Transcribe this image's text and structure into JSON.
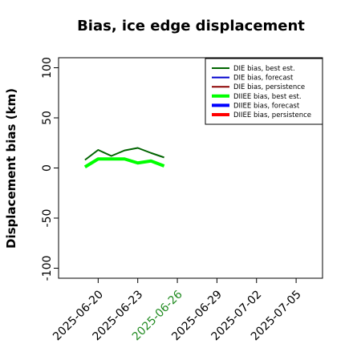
{
  "chart_data": {
    "type": "line",
    "title": "Bias, ice edge displacement",
    "ylabel": "Displacement bias (km)",
    "x": [
      "2025-06-19",
      "2025-06-20",
      "2025-06-21",
      "2025-06-22",
      "2025-06-23",
      "2025-06-24",
      "2025-06-25"
    ],
    "series": [
      {
        "name": "DIE bias, best est.",
        "color": "#006400",
        "width": 2,
        "values": [
          8,
          18,
          12,
          17.5,
          20,
          15,
          10.5
        ]
      },
      {
        "name": "DIE bias, forecast",
        "color": "#0000cd",
        "width": 2,
        "values": [
          null,
          null,
          null,
          null,
          null,
          null,
          null
        ]
      },
      {
        "name": "DIE bias, persistence",
        "color": "#8b0000",
        "width": 2,
        "values": [
          null,
          null,
          null,
          null,
          null,
          null,
          null
        ]
      },
      {
        "name": "DIIEE bias, best est.",
        "color": "#00ff00",
        "width": 4,
        "values": [
          1,
          9,
          9,
          9,
          5,
          7,
          2
        ]
      },
      {
        "name": "DIIEE bias, forecast",
        "color": "#0000ff",
        "width": 4,
        "values": [
          null,
          null,
          null,
          null,
          null,
          null,
          null
        ]
      },
      {
        "name": "DIIEE bias, persistence",
        "color": "#ff0000",
        "width": 4,
        "values": [
          null,
          null,
          null,
          null,
          null,
          null,
          null
        ]
      }
    ],
    "xlim": [
      "2025-06-17",
      "2025-07-07"
    ],
    "xticks": [
      "2025-06-20",
      "2025-06-23",
      "2025-06-26",
      "2025-06-29",
      "2025-07-02",
      "2025-07-05"
    ],
    "highlight_date": "2025-06-26",
    "highlight_color": "#228b22",
    "ylim": [
      -110,
      110
    ],
    "yticks": [
      -100,
      -50,
      0,
      50,
      100
    ],
    "legend": "upper right"
  }
}
